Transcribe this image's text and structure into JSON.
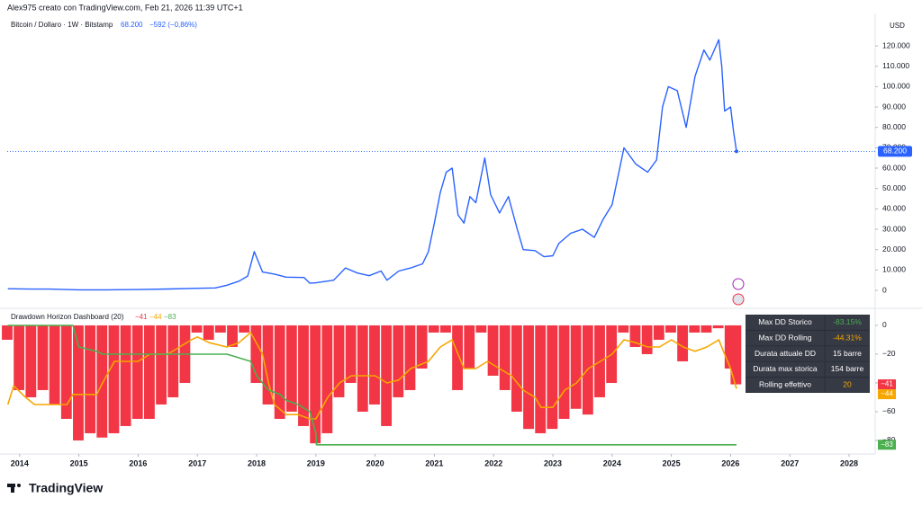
{
  "header": {
    "attribution": "Alex975 creato con TradingView.com, Feb 21, 2026 11:39 UTC+1"
  },
  "footer": {
    "logo": "TradingView"
  },
  "chart_data": [
    {
      "type": "line",
      "axis_unit": "USD",
      "last_value_label": "68.200",
      "change_label": "−592 (−0,86%)",
      "x": [
        2013.8,
        2014.2,
        2014.5,
        2015,
        2015.5,
        2016,
        2016.5,
        2017,
        2017.3,
        2017.5,
        2017.7,
        2017.85,
        2017.96,
        2018.1,
        2018.3,
        2018.5,
        2018.8,
        2018.9,
        2019.0,
        2019.3,
        2019.5,
        2019.7,
        2019.9,
        2020.1,
        2020.2,
        2020.4,
        2020.6,
        2020.8,
        2020.9,
        2021.0,
        2021.1,
        2021.2,
        2021.3,
        2021.4,
        2021.5,
        2021.6,
        2021.7,
        2021.85,
        2021.95,
        2022.1,
        2022.25,
        2022.4,
        2022.5,
        2022.7,
        2022.85,
        2023.0,
        2023.1,
        2023.3,
        2023.5,
        2023.7,
        2023.85,
        2024.0,
        2024.2,
        2024.4,
        2024.6,
        2024.75,
        2024.85,
        2024.95,
        2025.1,
        2025.25,
        2025.4,
        2025.55,
        2025.65,
        2025.8,
        2025.85,
        2025.9,
        2026.0,
        2026.05,
        2026.1
      ],
      "series": [
        {
          "name": "Bitcoin / Dollaro · 1W · Bitstamp",
          "color": "#2962ff",
          "values": [
            800,
            600,
            600,
            250,
            250,
            400,
            650,
            1000,
            1200,
            2500,
            4500,
            7000,
            19000,
            9000,
            8000,
            6500,
            6300,
            3500,
            3700,
            5000,
            11000,
            8500,
            7200,
            9500,
            5000,
            9500,
            11000,
            13000,
            19000,
            33000,
            48000,
            58000,
            60000,
            37000,
            33000,
            46000,
            43000,
            65000,
            47000,
            38000,
            46000,
            30000,
            20000,
            19500,
            16500,
            17000,
            23000,
            28000,
            30000,
            26000,
            35000,
            42000,
            70000,
            62000,
            58000,
            64000,
            90000,
            100000,
            98000,
            80000,
            105000,
            118000,
            113000,
            123000,
            110000,
            88000,
            90000,
            78000,
            68200
          ]
        }
      ],
      "xlim": [
        2013.79,
        2028.41
      ],
      "ylim": [
        -7500,
        135900
      ],
      "yticks": [
        0,
        {
          "value": 10000,
          "label": "10.000"
        },
        {
          "value": 20000,
          "label": "20.000"
        },
        {
          "value": 30000,
          "label": "30.000"
        },
        {
          "value": 40000,
          "label": "40.000"
        },
        {
          "value": 50000,
          "label": "50.000"
        },
        {
          "value": 60000,
          "label": "60.000"
        },
        {
          "value": 70000,
          "label": "70.000"
        },
        {
          "value": 80000,
          "label": "80.000"
        },
        {
          "value": 90000,
          "label": "90.000"
        },
        {
          "value": 100000,
          "label": "100.000"
        },
        {
          "value": 110000,
          "label": "110.000"
        },
        {
          "value": 120000,
          "label": "120.000"
        }
      ]
    },
    {
      "type": "combo",
      "title": "Drawdown Horizon Dashboard (20)",
      "series": [
        {
          "type": "bar",
          "color": "#f23645",
          "last_label": "−41",
          "x": [
            2013.8,
            2014.0,
            2014.2,
            2014.4,
            2014.6,
            2014.8,
            2015.0,
            2015.2,
            2015.4,
            2015.6,
            2015.8,
            2016.0,
            2016.2,
            2016.4,
            2016.6,
            2016.8,
            2017.0,
            2017.2,
            2017.4,
            2017.6,
            2017.8,
            2018.0,
            2018.2,
            2018.4,
            2018.6,
            2018.8,
            2019.0,
            2019.2,
            2019.4,
            2019.6,
            2019.8,
            2020.0,
            2020.2,
            2020.4,
            2020.6,
            2020.8,
            2021.0,
            2021.2,
            2021.4,
            2021.6,
            2021.8,
            2022.0,
            2022.2,
            2022.4,
            2022.6,
            2022.8,
            2023.0,
            2023.2,
            2023.4,
            2023.6,
            2023.8,
            2024.0,
            2024.2,
            2024.4,
            2024.6,
            2024.8,
            2025.0,
            2025.2,
            2025.4,
            2025.6,
            2025.8,
            2026.0,
            2026.1
          ],
          "values": [
            -10,
            -45,
            -50,
            -45,
            -55,
            -65,
            -80,
            -75,
            -78,
            -75,
            -70,
            -65,
            -65,
            -55,
            -50,
            -40,
            -5,
            -10,
            -5,
            -15,
            -5,
            -40,
            -55,
            -65,
            -60,
            -70,
            -82,
            -75,
            -50,
            -40,
            -60,
            -55,
            -70,
            -50,
            -45,
            -30,
            -5,
            -5,
            -45,
            -30,
            -5,
            -35,
            -45,
            -60,
            -72,
            -75,
            -72,
            -65,
            -58,
            -62,
            -50,
            -40,
            -5,
            -15,
            -20,
            -10,
            -5,
            -25,
            -5,
            -5,
            -2,
            -30,
            -41
          ]
        },
        {
          "type": "line",
          "color": "#f7a600",
          "last_label": "−44",
          "x": [
            2013.8,
            2013.9,
            2014.1,
            2014.25,
            2014.8,
            2014.9,
            2015.3,
            2015.4,
            2015.6,
            2015.8,
            2016.0,
            2016.2,
            2016.5,
            2016.7,
            2016.9,
            2017.0,
            2017.2,
            2017.5,
            2017.7,
            2017.9,
            2018.1,
            2018.2,
            2018.3,
            2018.5,
            2018.7,
            2018.9,
            2019.0,
            2019.2,
            2019.4,
            2019.6,
            2019.8,
            2020.0,
            2020.2,
            2020.4,
            2020.6,
            2020.9,
            2021.1,
            2021.3,
            2021.5,
            2021.7,
            2021.9,
            2022.1,
            2022.3,
            2022.5,
            2022.7,
            2022.8,
            2023.0,
            2023.2,
            2023.4,
            2023.6,
            2023.8,
            2024.0,
            2024.2,
            2024.4,
            2024.6,
            2024.8,
            2025.0,
            2025.2,
            2025.4,
            2025.6,
            2025.8,
            2025.9,
            2026.0,
            2026.1
          ],
          "values": [
            -55,
            -42,
            -50,
            -55,
            -55,
            -48,
            -48,
            -40,
            -25,
            -25,
            -25,
            -20,
            -20,
            -15,
            -10,
            -8,
            -12,
            -15,
            -12,
            -5,
            -20,
            -40,
            -55,
            -62,
            -62,
            -65,
            -65,
            -50,
            -40,
            -35,
            -35,
            -35,
            -40,
            -38,
            -30,
            -25,
            -15,
            -10,
            -30,
            -30,
            -25,
            -30,
            -35,
            -45,
            -50,
            -57,
            -57,
            -45,
            -40,
            -30,
            -25,
            -20,
            -10,
            -12,
            -15,
            -15,
            -10,
            -15,
            -18,
            -15,
            -10,
            -20,
            -30,
            -44
          ]
        },
        {
          "type": "line",
          "color": "#4caf50",
          "last_label": "−83",
          "x": [
            2013.8,
            2014.9,
            2015.0,
            2015.3,
            2015.4,
            2017.5,
            2017.9,
            2018.0,
            2018.2,
            2018.4,
            2018.5,
            2018.7,
            2018.9,
            2019.0,
            2019.01,
            2026.1
          ],
          "values": [
            0,
            0,
            -15,
            -18,
            -20,
            -20,
            -25,
            -35,
            -45,
            -48,
            -52,
            -55,
            -60,
            -75,
            -83,
            -83
          ]
        }
      ],
      "table": {
        "rows": [
          {
            "label": "Max DD Storico",
            "value": "-83.15%",
            "color": "#4caf50"
          },
          {
            "label": "Max DD Rolling",
            "value": "-44.31%",
            "color": "#f7a600"
          },
          {
            "label": "Durata attuale DD",
            "value": "15 barre",
            "color": "#ffffff"
          },
          {
            "label": "Durata max storica",
            "value": "154 barre",
            "color": "#ffffff"
          },
          {
            "label": "Rolling effettivo",
            "value": "20",
            "color": "#f7a600"
          }
        ]
      },
      "xlim": [
        2013.79,
        2028.41
      ],
      "ylim": [
        -89.4,
        10.6
      ],
      "yticks": [
        0,
        {
          "value": -20,
          "label": "−20"
        },
        {
          "value": -40,
          "label": "−40"
        },
        {
          "value": -60,
          "label": "−60"
        },
        {
          "value": -80,
          "label": "−80"
        }
      ],
      "xticks": [
        2014,
        2015,
        2016,
        2017,
        2018,
        2019,
        2020,
        2021,
        2022,
        2023,
        2024,
        2025,
        2026,
        2027,
        2028
      ]
    }
  ]
}
